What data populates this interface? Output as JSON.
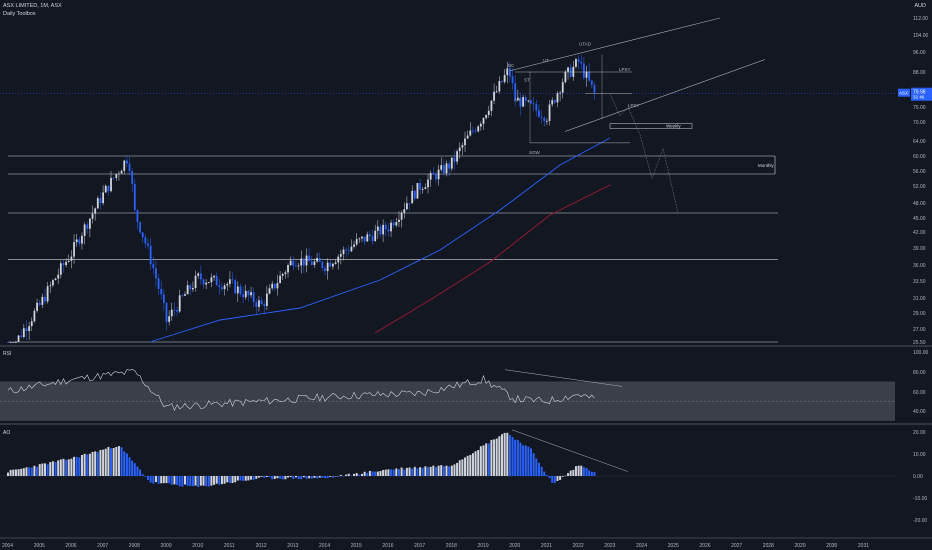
{
  "header": {
    "symbol": "ASX LIMITED, 1M, ASX",
    "indicator": "Daily Toolbox",
    "currency": "AUD"
  },
  "price_axis": {
    "ticks": [
      "112.00",
      "104.00",
      "96.00",
      "88.00",
      "81.00",
      "75.00",
      "70.00",
      "64.00",
      "60.00",
      "56.00",
      "52.00",
      "48.00",
      "45.00",
      "42.00",
      "39.00",
      "36.00",
      "33.50",
      "31.00",
      "29.00",
      "27.00",
      "25.50"
    ],
    "last_price": "79.98",
    "last_price_sub": "32 46",
    "symbol_badge": "ASX"
  },
  "rsi_axis": [
    "100.00",
    "80.00",
    "60.00",
    "40.00"
  ],
  "ao_axis": [
    "20.00",
    "10.00",
    "0.00",
    "-10.00",
    "-20.00"
  ],
  "x_axis": [
    "2004",
    "2005",
    "2006",
    "2007",
    "2008",
    "2009",
    "2010",
    "2011",
    "2012",
    "2013",
    "2014",
    "2015",
    "2016",
    "2017",
    "2018",
    "2019",
    "2020",
    "2021",
    "2022",
    "2023",
    "2024",
    "2025",
    "2026",
    "2027",
    "2028",
    "2029",
    "2030",
    "2031"
  ],
  "panes": {
    "rsi": "RSI",
    "ao": "AO"
  },
  "annotations": {
    "wyckoff": [
      "BC",
      "ST",
      "UT",
      "UTAD",
      "AR",
      "LPSY",
      "SOW",
      "LPSY"
    ],
    "zones": [
      "Monthly",
      "Weekly"
    ]
  },
  "colors": {
    "bg": "#131722",
    "up": "#d1d4dc",
    "down": "#2962ff",
    "ma_blue": "#2962ff",
    "ma_red": "#9b1b30",
    "rsi_band": "#5d606b"
  },
  "chart_data": [
    {
      "type": "candlestick",
      "title": "ASX LIMITED, 1M, ASX",
      "x": [
        2004,
        2005,
        2006,
        2007,
        2007.8,
        2008,
        2009,
        2010,
        2011,
        2012,
        2013,
        2014,
        2015,
        2016,
        2017,
        2018,
        2019,
        2019.8,
        2020,
        2021,
        2021.5,
        2022,
        2022.5
      ],
      "close": [
        24,
        30,
        38,
        50,
        60,
        46,
        28,
        34,
        33,
        30,
        37,
        36,
        40,
        43,
        52,
        58,
        72,
        89,
        78,
        72,
        85,
        92,
        79.98
      ],
      "ylim": [
        25.5,
        115
      ]
    },
    {
      "type": "line",
      "title": "RSI",
      "x": [
        2004,
        2006,
        2008,
        2009,
        2011,
        2013,
        2015,
        2017,
        2019,
        2020,
        2021,
        2022,
        2022.5
      ],
      "values": [
        60,
        72,
        80,
        44,
        48,
        52,
        56,
        58,
        72,
        52,
        50,
        57,
        52
      ],
      "ylim": [
        30,
        100
      ]
    },
    {
      "type": "bar",
      "title": "AO",
      "x": [
        2004,
        2006,
        2007.5,
        2008.5,
        2010,
        2012,
        2014,
        2016,
        2018,
        2019.7,
        2020.5,
        2021.2,
        2022,
        2022.5
      ],
      "values": [
        2,
        8,
        14,
        -3,
        -5,
        -1,
        -1,
        3,
        5,
        20,
        12,
        -4,
        5,
        2
      ],
      "ylim": [
        -22,
        22
      ]
    }
  ]
}
